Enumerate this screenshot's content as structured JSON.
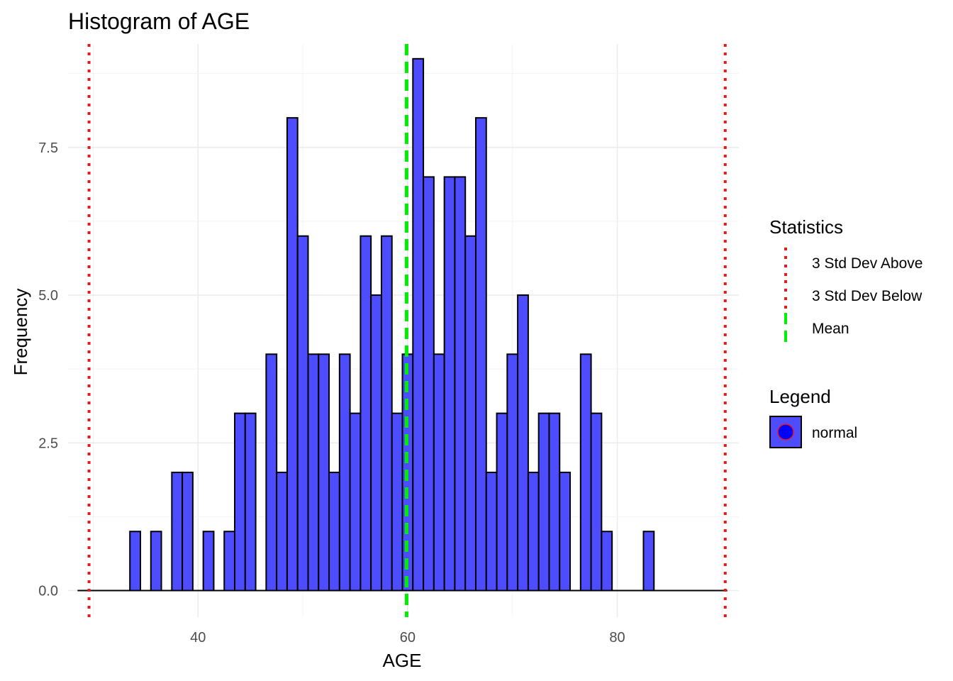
{
  "chart_data": {
    "type": "bar",
    "title": "Histogram of AGE",
    "xlabel": "AGE",
    "ylabel": "Frequency",
    "xlim": [
      27.6,
      91.6
    ],
    "ylim": [
      -0.45,
      9.25
    ],
    "x_ticks": [
      40,
      60,
      80
    ],
    "x_tick_labels": [
      "40",
      "60",
      "80"
    ],
    "y_ticks": [
      0,
      2.5,
      5,
      7.5
    ],
    "y_tick_labels": [
      "0.0",
      "2.5",
      "5.0",
      "7.5"
    ],
    "grid": true,
    "bin_width": 1,
    "bars": {
      "x_start": 28.5,
      "counts": [
        0,
        0,
        0,
        0,
        0,
        1,
        0,
        1,
        0,
        2,
        2,
        0,
        1,
        0,
        1,
        3,
        3,
        0,
        4,
        2,
        8,
        6,
        4,
        4,
        2,
        4,
        3,
        6,
        5,
        6,
        3,
        4,
        9,
        7,
        4,
        7,
        7,
        6,
        8,
        2,
        3,
        4,
        5,
        2,
        3,
        3,
        2,
        0,
        4,
        3,
        1,
        0,
        0,
        0,
        1,
        0,
        0,
        0,
        0,
        0,
        0,
        0
      ],
      "fill": "#4d4dff",
      "outline": "#000000"
    },
    "reference_lines": [
      {
        "name": "3 Std Dev Below",
        "x": 29.6,
        "color": "#e41a1c",
        "style": "dotted"
      },
      {
        "name": "Mean",
        "x": 59.9,
        "color": "#00ee00",
        "style": "dashed"
      },
      {
        "name": "3 Std Dev Above",
        "x": 90.3,
        "color": "#e41a1c",
        "style": "dotted"
      }
    ],
    "legend": {
      "placement": "right",
      "statistics_title": "Statistics",
      "statistics_items": [
        {
          "label": "3 Std Dev Above",
          "color": "#e41a1c",
          "style": "dotted"
        },
        {
          "label": "3 Std Dev Below",
          "color": "#e41a1c",
          "style": "dotted"
        },
        {
          "label": "Mean",
          "color": "#00ee00",
          "style": "dashed"
        }
      ],
      "fill_title": "Legend",
      "fill_items": [
        {
          "label": "normal",
          "fill": "#4d4dff",
          "point_color": "#0000ff",
          "point_outline": "#e41a1c"
        }
      ]
    }
  }
}
